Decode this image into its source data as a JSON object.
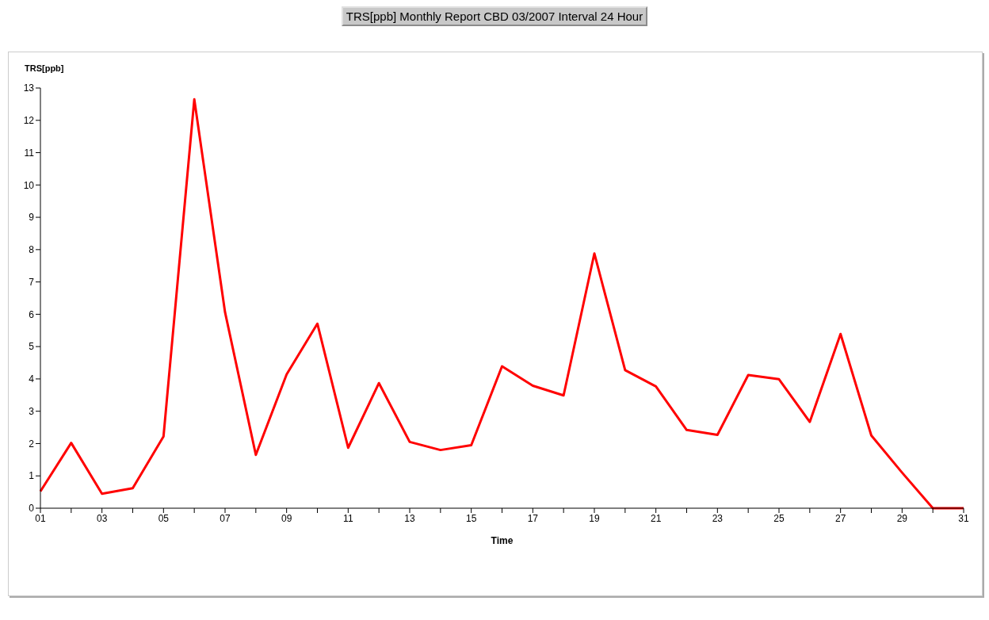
{
  "chart_data": {
    "type": "line",
    "title": "TRS[ppb] Monthly Report CBD 03/2007 Interval 24 Hour",
    "xlabel": "Time",
    "ylabel": "TRS[ppb]",
    "x": [
      1,
      2,
      3,
      4,
      5,
      6,
      7,
      8,
      9,
      10,
      11,
      12,
      13,
      14,
      15,
      16,
      17,
      18,
      19,
      20,
      21,
      22,
      23,
      24,
      25,
      26,
      27,
      28,
      29,
      30,
      31
    ],
    "series": [
      {
        "color": "#ff0000",
        "values": [
          0.52,
          2.02,
          0.45,
          0.62,
          2.22,
          12.65,
          6.06,
          1.65,
          4.14,
          5.71,
          1.87,
          3.87,
          2.05,
          1.8,
          1.95,
          4.39,
          3.79,
          3.49,
          7.88,
          4.27,
          3.77,
          2.42,
          2.27,
          4.12,
          3.99,
          2.67,
          5.39,
          2.25,
          1.1,
          0,
          0
        ]
      }
    ],
    "xlim": [
      1,
      31
    ],
    "xticks": [
      {
        "value": 1,
        "label": "01"
      },
      {
        "value": 2,
        "label": null
      },
      {
        "value": 3,
        "label": "03"
      },
      {
        "value": 4,
        "label": null
      },
      {
        "value": 5,
        "label": "05"
      },
      {
        "value": 6,
        "label": null
      },
      {
        "value": 7,
        "label": "07"
      },
      {
        "value": 8,
        "label": null
      },
      {
        "value": 9,
        "label": "09"
      },
      {
        "value": 10,
        "label": null
      },
      {
        "value": 11,
        "label": "11"
      },
      {
        "value": 12,
        "label": null
      },
      {
        "value": 13,
        "label": "13"
      },
      {
        "value": 14,
        "label": null
      },
      {
        "value": 15,
        "label": "15"
      },
      {
        "value": 16,
        "label": null
      },
      {
        "value": 17,
        "label": "17"
      },
      {
        "value": 18,
        "label": null
      },
      {
        "value": 19,
        "label": "19"
      },
      {
        "value": 20,
        "label": null
      },
      {
        "value": 21,
        "label": "21"
      },
      {
        "value": 22,
        "label": null
      },
      {
        "value": 23,
        "label": "23"
      },
      {
        "value": 24,
        "label": null
      },
      {
        "value": 25,
        "label": "25"
      },
      {
        "value": 26,
        "label": null
      },
      {
        "value": 27,
        "label": "27"
      },
      {
        "value": 28,
        "label": null
      },
      {
        "value": 29,
        "label": "29"
      },
      {
        "value": 30,
        "label": null
      },
      {
        "value": 31,
        "label": "31"
      }
    ],
    "ylim": [
      0,
      13
    ],
    "yticks": [
      0,
      1,
      2,
      3,
      4,
      5,
      6,
      7,
      8,
      9,
      10,
      11,
      12,
      13
    ],
    "grid": false,
    "legend": false,
    "marker": "none",
    "line_style": "solid"
  }
}
